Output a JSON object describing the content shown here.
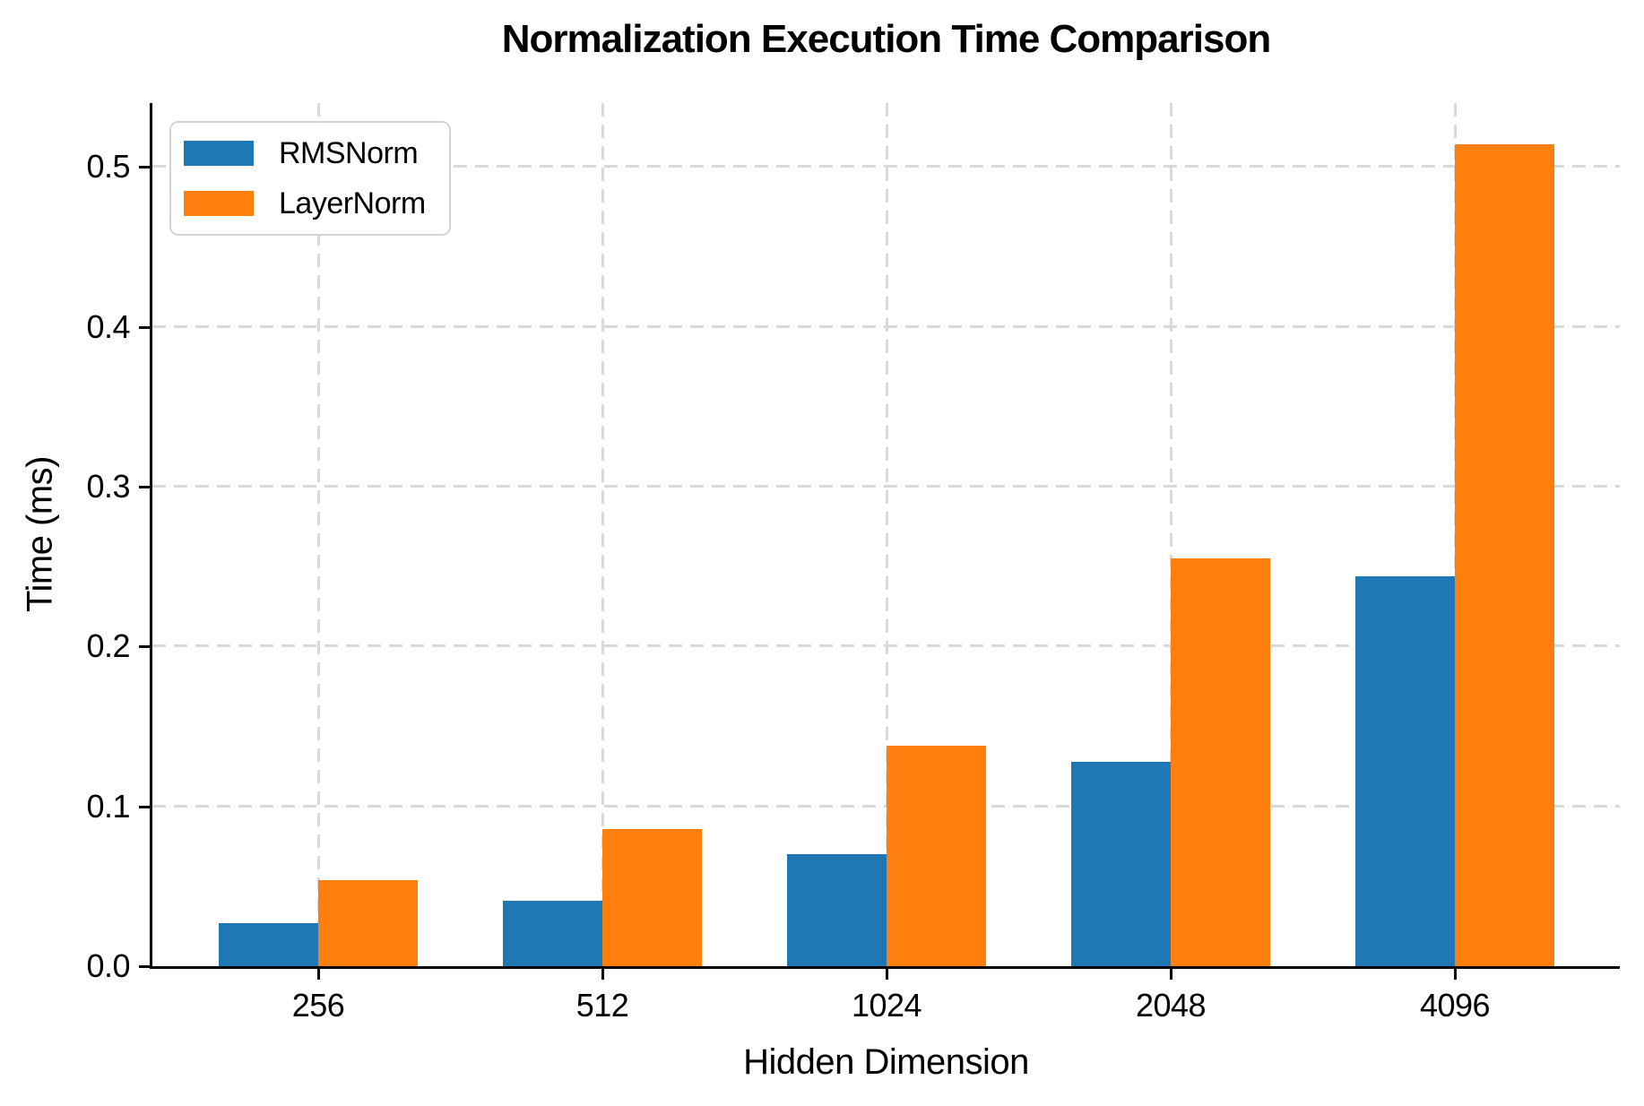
{
  "chart_data": {
    "type": "bar",
    "title": "Normalization Execution Time Comparison",
    "xlabel": "Hidden Dimension",
    "ylabel": "Time (ms)",
    "categories": [
      "256",
      "512",
      "1024",
      "2048",
      "4096"
    ],
    "series": [
      {
        "name": "RMSNorm",
        "color": "#1f77b4",
        "values": [
          0.027,
          0.041,
          0.07,
          0.128,
          0.244
        ]
      },
      {
        "name": "LayerNorm",
        "color": "#ff7f0e",
        "values": [
          0.054,
          0.086,
          0.138,
          0.255,
          0.514
        ]
      }
    ],
    "ylim": [
      0,
      0.54
    ],
    "yticks": [
      0.0,
      0.1,
      0.2,
      0.3,
      0.4,
      0.5
    ],
    "ytick_labels": [
      "0.0",
      "0.1",
      "0.2",
      "0.3",
      "0.4",
      "0.5"
    ],
    "grid": true,
    "grid_style": "dashed",
    "grid_color": "#d9d9d9",
    "axis_color": "#000000",
    "legend_position": "upper-left"
  }
}
